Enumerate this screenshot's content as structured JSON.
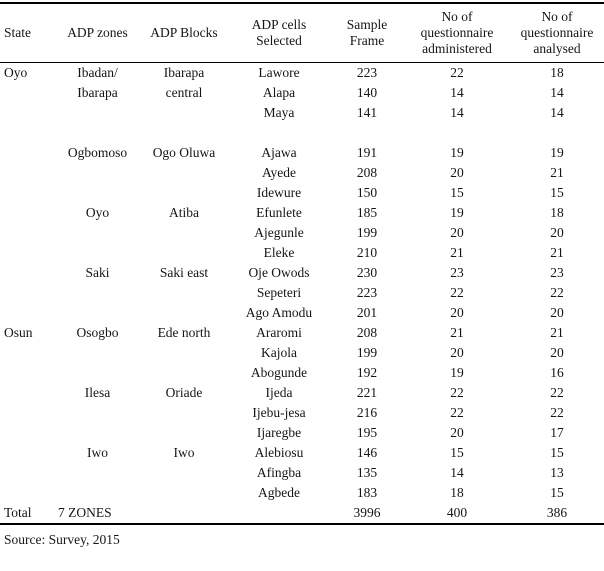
{
  "table": {
    "headers": [
      "State",
      "ADP zones",
      "ADP Blocks",
      "ADP cells\nSelected",
      "Sample\nFrame",
      "No of\nquestionnaire\nadministered",
      "No of\nquestionnaire\nanalysed"
    ],
    "rows": [
      [
        "Oyo",
        "Ibadan/",
        "Ibarapa",
        "Lawore",
        "223",
        "22",
        "18"
      ],
      [
        "",
        "Ibarapa",
        "central",
        "Alapa",
        "140",
        "14",
        "14"
      ],
      [
        "",
        "",
        "",
        "Maya",
        "141",
        "14",
        "14"
      ],
      [
        "",
        "",
        "",
        "",
        "",
        "",
        ""
      ],
      [
        "",
        "Ogbomoso",
        "Ogo Oluwa",
        "Ajawa",
        "191",
        "19",
        "19"
      ],
      [
        "",
        "",
        "",
        "Ayede",
        "208",
        "20",
        "21"
      ],
      [
        "",
        "",
        "",
        "Idewure",
        "150",
        "15",
        "15"
      ],
      [
        "",
        "Oyo",
        "Atiba",
        "Efunlete",
        "185",
        "19",
        "18"
      ],
      [
        "",
        "",
        "",
        "Ajegunle",
        "199",
        "20",
        "20"
      ],
      [
        "",
        "",
        "",
        "Eleke",
        "210",
        "21",
        "21"
      ],
      [
        "",
        "Saki",
        "Saki east",
        "Oje Owods",
        "230",
        "23",
        "23"
      ],
      [
        "",
        "",
        "",
        "Sepeteri",
        "223",
        "22",
        "22"
      ],
      [
        "",
        "",
        "",
        "Ago Amodu",
        "201",
        "20",
        "20"
      ],
      [
        "Osun",
        "Osogbo",
        "Ede north",
        "Araromi",
        "208",
        "21",
        "21"
      ],
      [
        "",
        "",
        "",
        "Kajola",
        "199",
        "20",
        "20"
      ],
      [
        "",
        "",
        "",
        "Abogunde",
        "192",
        "19",
        "16"
      ],
      [
        "",
        "Ilesa",
        "Oriade",
        "Ijeda",
        "221",
        "22",
        "22"
      ],
      [
        "",
        "",
        "",
        "Ijebu-jesa",
        "216",
        "22",
        "22"
      ],
      [
        "",
        "",
        "",
        "Ijaregbe",
        "195",
        "20",
        "17"
      ],
      [
        "",
        "Iwo",
        "Iwo",
        "Alebiosu",
        "146",
        "15",
        "15"
      ],
      [
        "",
        "",
        "",
        "Afingba",
        "135",
        "14",
        "13"
      ],
      [
        "",
        "",
        "",
        "Agbede",
        "183",
        "18",
        "15"
      ]
    ],
    "total_row": [
      "Total",
      "7 ZONES",
      "",
      "",
      "3996",
      "400",
      "386"
    ],
    "source_note": "Source: Survey, 2015"
  }
}
